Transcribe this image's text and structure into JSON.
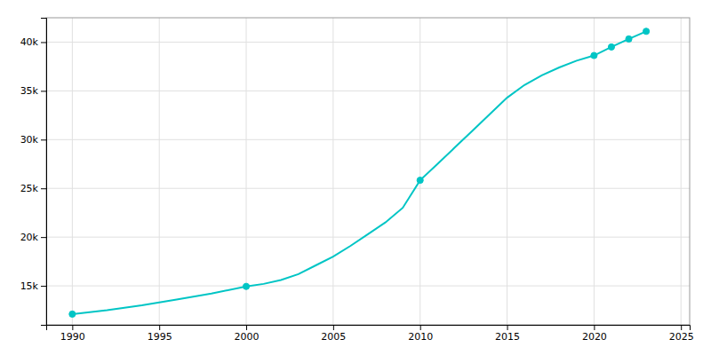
{
  "chart_data": {
    "type": "line",
    "x": [
      1990,
      1992,
      1994,
      1996,
      1998,
      2000,
      2001,
      2002,
      2003,
      2004,
      2005,
      2006,
      2007,
      2008,
      2009,
      2010,
      2011,
      2012,
      2013,
      2014,
      2015,
      2016,
      2017,
      2018,
      2019,
      2020,
      2021,
      2022,
      2023
    ],
    "series": [
      {
        "color": "#00C5C5",
        "line_style": "solid",
        "values": [
          12099,
          12500,
          13000,
          13600,
          14200,
          14940,
          15200,
          15600,
          16200,
          17100,
          18000,
          19100,
          20300,
          21500,
          23000,
          25830,
          27500,
          29200,
          30900,
          32600,
          34300,
          35600,
          36600,
          37400,
          38100,
          38626,
          39502,
          40322,
          41108
        ]
      },
      {
        "type": "scatter",
        "marker": "circle",
        "color": "#00C5C5",
        "x": [
          1990,
          2000,
          2010,
          2020,
          2021,
          2022,
          2023
        ],
        "values": [
          12099,
          14940,
          25830,
          38626,
          39502,
          40322,
          41108
        ]
      }
    ],
    "xlim": [
      1988.5,
      2025.5
    ],
    "ylim": [
      11000,
      42500
    ],
    "xticks": [
      1990,
      1995,
      2000,
      2005,
      2010,
      2015,
      2020,
      2025
    ],
    "yticks": [
      {
        "value": 15000,
        "label": "15k"
      },
      {
        "value": 20000,
        "label": "20k"
      },
      {
        "value": 25000,
        "label": "25k"
      },
      {
        "value": 30000,
        "label": "30k"
      },
      {
        "value": 35000,
        "label": "35k"
      },
      {
        "value": 40000,
        "label": "40k"
      }
    ],
    "grid": true
  }
}
